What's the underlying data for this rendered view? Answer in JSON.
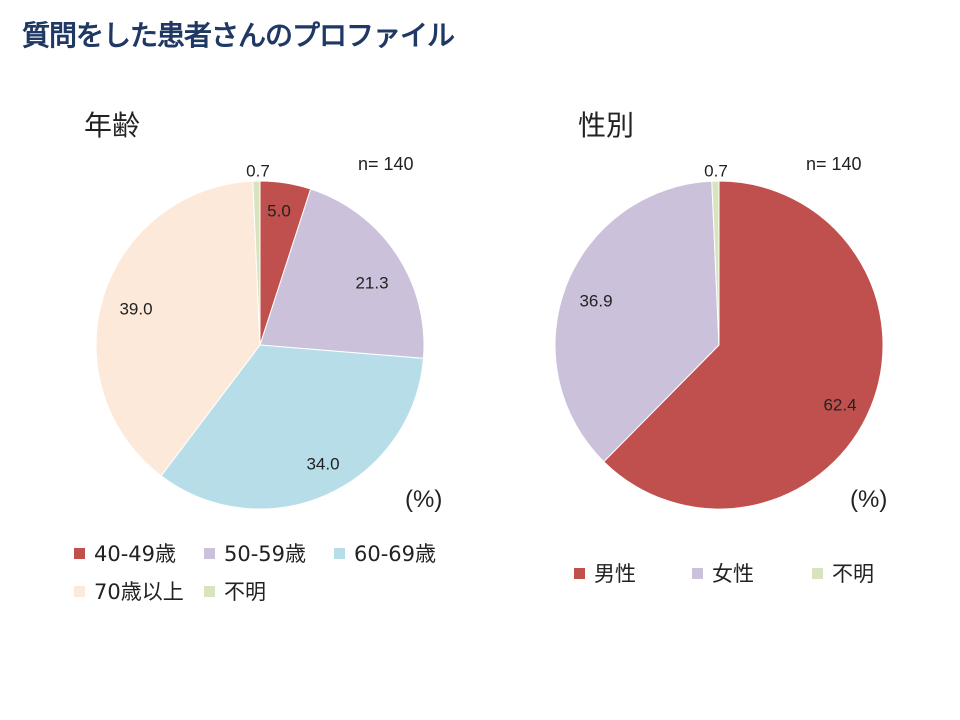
{
  "page": {
    "title": "質問をした患者さんのプロファイル"
  },
  "chart_data": [
    {
      "type": "pie",
      "title": "年齢",
      "n_label": "n= 140",
      "unit_label": "(%)",
      "categories": [
        "40-49歳",
        "50-59歳",
        "60-69歳",
        "70歳以上",
        "不明"
      ],
      "values": [
        5.0,
        21.3,
        34.0,
        39.0,
        0.7
      ],
      "value_labels": [
        "5.0",
        "21.3",
        "34.0",
        "39.0",
        "0.7"
      ],
      "colors": [
        "#c0504d",
        "#ccc1da",
        "#b7dee8",
        "#fde9d9",
        "#d7e4bd"
      ],
      "legend_position": "bottom"
    },
    {
      "type": "pie",
      "title": "性別",
      "n_label": "n= 140",
      "unit_label": "(%)",
      "categories": [
        "男性",
        "女性",
        "不明"
      ],
      "values": [
        62.4,
        36.9,
        0.7
      ],
      "value_labels": [
        "62.4",
        "36.9",
        "0.7"
      ],
      "colors": [
        "#c0504d",
        "#ccc1da",
        "#d7e4bd"
      ],
      "legend_position": "bottom"
    }
  ]
}
